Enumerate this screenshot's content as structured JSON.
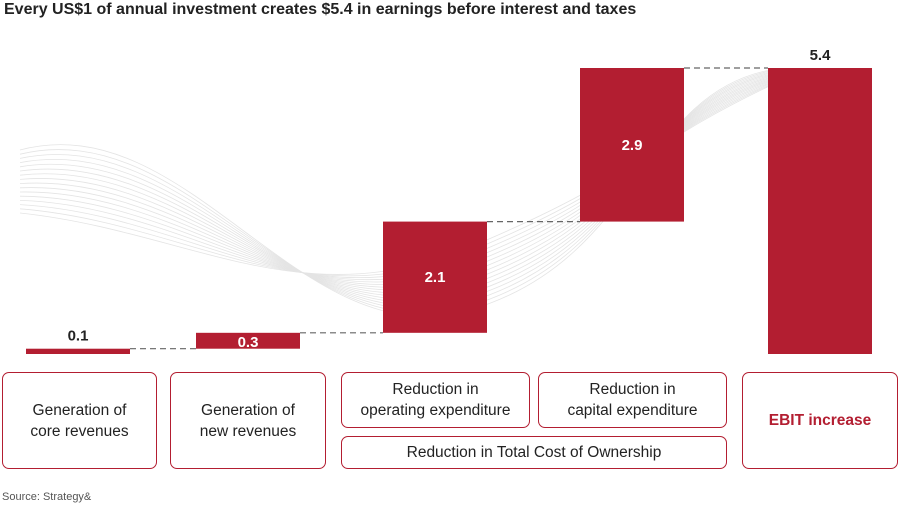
{
  "title": "Every US$1 of annual investment creates $5.4 in earnings before interest and taxes",
  "source": "Source: Strategy&",
  "colors": {
    "bar": "#b31e31",
    "connector": "#666666",
    "wave": "#e4e4e4"
  },
  "chart_data": {
    "type": "waterfall",
    "title": "Every US$1 of annual investment creates $5.4 in earnings before interest and taxes",
    "categories": [
      "Generation of core revenues",
      "Generation of new revenues",
      "Reduction in operating expenditure",
      "Reduction in capital expenditure",
      "EBIT increase"
    ],
    "values": [
      0.1,
      0.3,
      2.1,
      2.9,
      5.4
    ],
    "labels": [
      "0.1",
      "0.3",
      "2.1",
      "2.9",
      "5.4"
    ],
    "total_index": 4,
    "ylim": [
      0,
      5.4
    ],
    "grid": false,
    "group_label": "Reduction in Total Cost of Ownership"
  },
  "categories_display": {
    "core": [
      "Generation of",
      "core revenues"
    ],
    "new": [
      "Generation of",
      "new revenues"
    ],
    "opex": [
      "Reduction in",
      "operating expenditure"
    ],
    "capex": [
      "Reduction in",
      "capital expenditure"
    ],
    "ebit": "EBIT increase",
    "tco": "Reduction in Total Cost of Ownership"
  }
}
